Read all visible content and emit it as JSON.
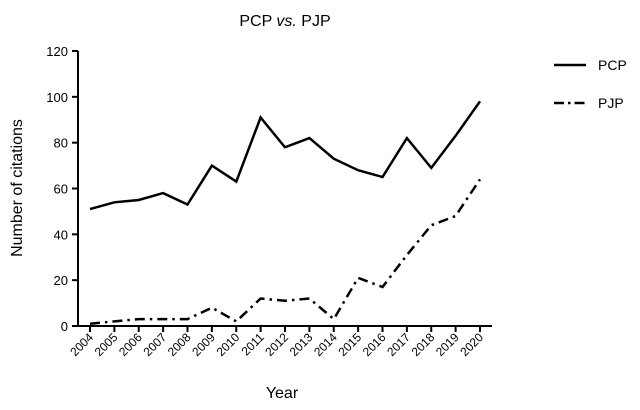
{
  "chart_data": {
    "type": "line",
    "title": {
      "main": "PCP ",
      "italic": "vs.",
      "rest": " PJP"
    },
    "xlabel": "Year",
    "ylabel": "Number of citations",
    "categories": [
      "2004",
      "2005",
      "2006",
      "2007",
      "2008",
      "2009",
      "2010",
      "2011",
      "2012",
      "2013",
      "2014",
      "2015",
      "2016",
      "2017",
      "2018",
      "2019",
      "2020"
    ],
    "ylim": [
      0,
      120
    ],
    "yticks": [
      0,
      20,
      40,
      60,
      80,
      100,
      120
    ],
    "grid": false,
    "legend": "right",
    "series": [
      {
        "name": "PCP",
        "style": "solid",
        "values": [
          51,
          54,
          55,
          58,
          53,
          70,
          63,
          91,
          78,
          82,
          73,
          68,
          65,
          82,
          69,
          83,
          98
        ]
      },
      {
        "name": "PJP",
        "style": "dash-dot",
        "values": [
          1,
          2,
          3,
          3,
          3,
          8,
          2,
          12,
          11,
          12,
          3,
          21,
          17,
          31,
          44,
          48,
          64
        ]
      }
    ]
  }
}
